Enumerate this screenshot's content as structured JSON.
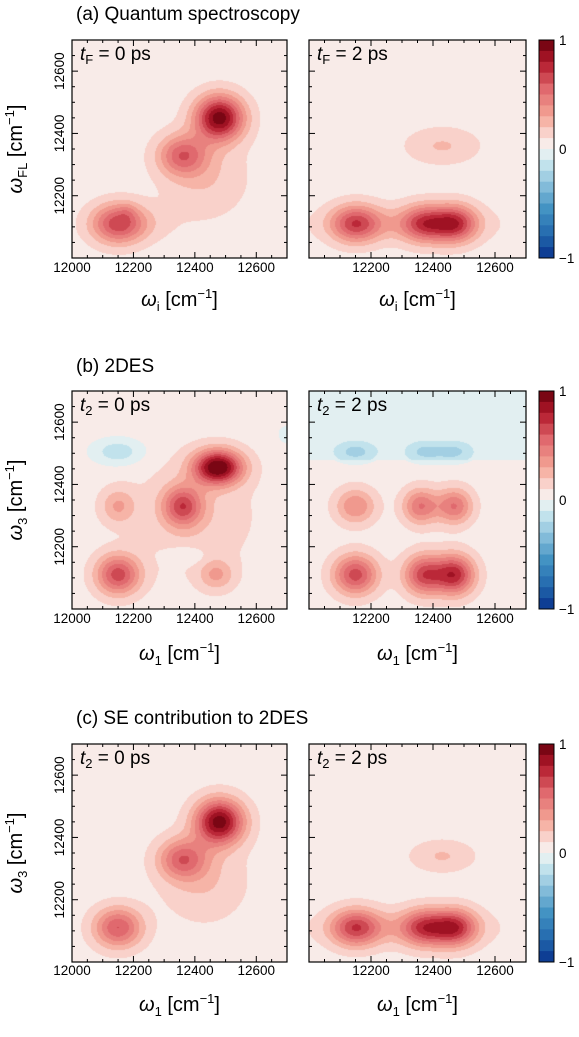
{
  "chart_data": [
    {
      "type": "heatmap",
      "title": "(a) Quantum spectroscopy",
      "xlabel": {
        "sym": "ω",
        "sub": "i",
        "unit": "[cm",
        "sup": "−1",
        "close": "]"
      },
      "ylabel": {
        "sym": "ω",
        "sub": "FL",
        "unit": "[cm",
        "sup": "−1",
        "close": "]"
      },
      "xlim": [
        12000,
        12700
      ],
      "ylim": [
        12000,
        12700
      ],
      "xticks": [
        "12000",
        "12200",
        "12400",
        "12600"
      ],
      "yticks": [
        "12200",
        "12400",
        "12600"
      ],
      "colorbar": {
        "ticks": [
          "1",
          "0",
          "−1"
        ],
        "range": [
          -1,
          1
        ],
        "levels": 20
      },
      "panels": [
        {
          "label": {
            "sym": "t",
            "sub": "F",
            "rest": " = 0 ps"
          },
          "background": 0.05,
          "peaks": [
            {
              "x": 12480,
              "y": 12450,
              "amp": 0.9,
              "sx": 55,
              "sy": 50
            },
            {
              "x": 12360,
              "y": 12330,
              "amp": 0.48,
              "sx": 55,
              "sy": 45
            },
            {
              "x": 12150,
              "y": 12110,
              "amp": 0.55,
              "sx": 60,
              "sy": 45
            },
            {
              "x": 12430,
              "y": 12260,
              "amp": 0.15,
              "sx": 95,
              "sy": 90
            },
            {
              "x": 12200,
              "y": 12110,
              "amp": 0.1,
              "sx": 90,
              "sy": 40
            },
            {
              "x": 12180,
              "y": 12150,
              "amp": 0.08,
              "sx": 20,
              "sy": 20
            }
          ]
        },
        {
          "label": {
            "sym": "t",
            "sub": "F",
            "rest": " = 2 ps"
          },
          "background": 0.05,
          "peaks": [
            {
              "x": 12150,
              "y": 12110,
              "amp": 0.55,
              "sx": 55,
              "sy": 42
            },
            {
              "x": 12370,
              "y": 12110,
              "amp": 0.5,
              "sx": 50,
              "sy": 42
            },
            {
              "x": 12470,
              "y": 12110,
              "amp": 0.62,
              "sx": 50,
              "sy": 42
            },
            {
              "x": 12310,
              "y": 12110,
              "amp": 0.18,
              "sx": 180,
              "sy": 40
            },
            {
              "x": 12430,
              "y": 12360,
              "amp": 0.16,
              "sx": 80,
              "sy": 40
            }
          ]
        }
      ]
    },
    {
      "type": "heatmap",
      "title": "(b) 2DES",
      "xlabel": {
        "sym": "ω",
        "sub": "1",
        "unit": "[cm",
        "sup": "−1",
        "close": "]"
      },
      "ylabel": {
        "sym": "ω",
        "sub": "3",
        "unit": "[cm",
        "sup": "−1",
        "close": "]"
      },
      "xlim": [
        12000,
        12700
      ],
      "ylim": [
        12000,
        12700
      ],
      "xticks": [
        "12000",
        "12200",
        "12400",
        "12600"
      ],
      "yticks": [
        "12200",
        "12400",
        "12600"
      ],
      "colorbar": {
        "ticks": [
          "1",
          "0",
          "−1"
        ],
        "range": [
          -1,
          1
        ],
        "levels": 20
      },
      "panels": [
        {
          "label": {
            "sym": "t",
            "sub": "2",
            "rest": " = 0 ps"
          },
          "background": 0.05,
          "peaks": [
            {
              "x": 12475,
              "y": 12455,
              "amp": 0.95,
              "sx": 55,
              "sy": 38
            },
            {
              "x": 12360,
              "y": 12330,
              "amp": 0.55,
              "sx": 45,
              "sy": 45
            },
            {
              "x": 12150,
              "y": 12110,
              "amp": 0.6,
              "sx": 50,
              "sy": 45
            },
            {
              "x": 12150,
              "y": 12330,
              "amp": 0.25,
              "sx": 40,
              "sy": 40
            },
            {
              "x": 12470,
              "y": 12110,
              "amp": 0.25,
              "sx": 40,
              "sy": 35
            },
            {
              "x": 12150,
              "y": 12505,
              "amp": -0.22,
              "sx": 60,
              "sy": 30
            },
            {
              "x": 12370,
              "y": 12170,
              "amp": -0.12,
              "sx": 45,
              "sy": 20
            },
            {
              "x": 12700,
              "y": 12560,
              "amp": -0.08,
              "sx": 30,
              "sy": 30
            },
            {
              "x": 12400,
              "y": 12300,
              "amp": 0.12,
              "sx": 140,
              "sy": 130
            }
          ]
        },
        {
          "label": {
            "sym": "t",
            "sub": "2",
            "rest": " = 2 ps"
          },
          "background": 0.05,
          "band": {
            "ymin": 12480,
            "value": -0.07
          },
          "peaks": [
            {
              "x": 12150,
              "y": 12110,
              "amp": 0.6,
              "sx": 50,
              "sy": 45
            },
            {
              "x": 12370,
              "y": 12110,
              "amp": 0.6,
              "sx": 45,
              "sy": 45
            },
            {
              "x": 12470,
              "y": 12110,
              "amp": 0.7,
              "sx": 45,
              "sy": 45
            },
            {
              "x": 12150,
              "y": 12330,
              "amp": 0.35,
              "sx": 45,
              "sy": 40
            },
            {
              "x": 12360,
              "y": 12330,
              "amp": 0.45,
              "sx": 40,
              "sy": 40
            },
            {
              "x": 12470,
              "y": 12330,
              "amp": 0.45,
              "sx": 40,
              "sy": 40
            },
            {
              "x": 12150,
              "y": 12505,
              "amp": -0.22,
              "sx": 50,
              "sy": 25
            },
            {
              "x": 12370,
              "y": 12505,
              "amp": -0.2,
              "sx": 45,
              "sy": 25
            },
            {
              "x": 12470,
              "y": 12505,
              "amp": -0.2,
              "sx": 45,
              "sy": 25
            }
          ]
        }
      ]
    },
    {
      "type": "heatmap",
      "title": "(c) SE contribution to 2DES",
      "xlabel": {
        "sym": "ω",
        "sub": "1",
        "unit": "[cm",
        "sup": "−1",
        "close": "]"
      },
      "ylabel": {
        "sym": "ω",
        "sub": "3",
        "unit": "[cm",
        "sup": "−1",
        "close": "]"
      },
      "xlim": [
        12000,
        12700
      ],
      "ylim": [
        12000,
        12700
      ],
      "xticks": [
        "12000",
        "12200",
        "12400",
        "12600"
      ],
      "yticks": [
        "12200",
        "12400",
        "12600"
      ],
      "colorbar": {
        "ticks": [
          "1",
          "0",
          "−1"
        ],
        "range": [
          -1,
          1
        ],
        "levels": 20
      },
      "panels": [
        {
          "label": {
            "sym": "t",
            "sub": "2",
            "rest": " = 0 ps"
          },
          "background": 0.05,
          "peaks": [
            {
              "x": 12480,
              "y": 12450,
              "amp": 0.9,
              "sx": 55,
              "sy": 50
            },
            {
              "x": 12360,
              "y": 12330,
              "amp": 0.48,
              "sx": 55,
              "sy": 45
            },
            {
              "x": 12150,
              "y": 12110,
              "amp": 0.55,
              "sx": 55,
              "sy": 45
            },
            {
              "x": 12430,
              "y": 12260,
              "amp": 0.15,
              "sx": 95,
              "sy": 90
            }
          ]
        },
        {
          "label": {
            "sym": "t",
            "sub": "2",
            "rest": " = 2 ps"
          },
          "background": 0.05,
          "peaks": [
            {
              "x": 12150,
              "y": 12110,
              "amp": 0.55,
              "sx": 55,
              "sy": 42
            },
            {
              "x": 12370,
              "y": 12110,
              "amp": 0.5,
              "sx": 50,
              "sy": 42
            },
            {
              "x": 12470,
              "y": 12110,
              "amp": 0.62,
              "sx": 50,
              "sy": 42
            },
            {
              "x": 12310,
              "y": 12110,
              "amp": 0.18,
              "sx": 180,
              "sy": 40
            },
            {
              "x": 12430,
              "y": 12340,
              "amp": 0.16,
              "sx": 70,
              "sy": 35
            }
          ]
        }
      ]
    }
  ]
}
